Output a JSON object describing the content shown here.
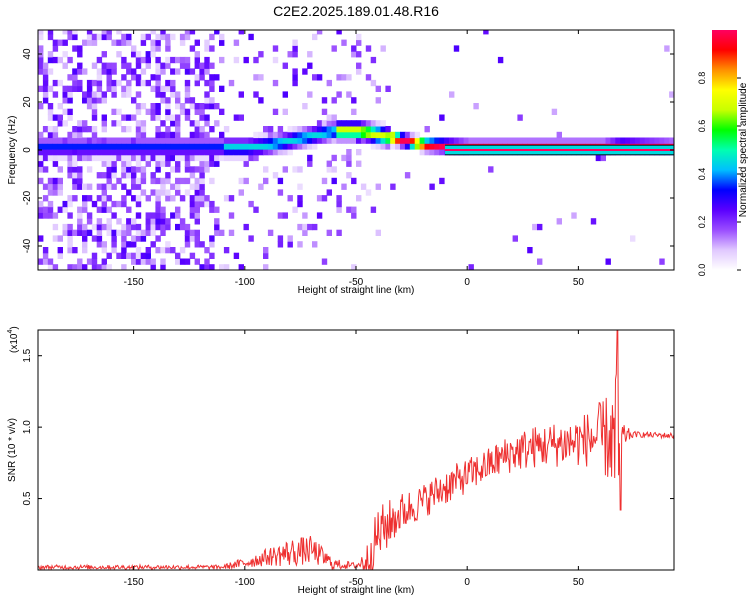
{
  "title": "C2E2.2025.189.01.48.R16",
  "chart_data": [
    {
      "type": "heatmap",
      "xlabel": "Height of straight line (km)",
      "ylabel": "Frequency (Hz)",
      "xlim": [
        -193,
        93
      ],
      "ylim": [
        -50,
        50
      ],
      "xticks": [
        -150,
        -100,
        -50,
        0,
        50
      ],
      "yticks": [
        -40,
        -20,
        0,
        20,
        40
      ],
      "colorbar": {
        "label": "Normalized spectral amplitude",
        "range": [
          0,
          1
        ],
        "ticks": [
          0.0,
          0.2,
          0.4,
          0.6,
          0.8
        ],
        "tick_labels": [
          "0.0",
          "0.2",
          "0.4",
          "0.6",
          "0.8"
        ],
        "colormap": [
          "#ffffff",
          "#e0c8ff",
          "#9a4dff",
          "#5a00ff",
          "#0000ff",
          "#00bfff",
          "#00ffb0",
          "#00ff00",
          "#c8ff00",
          "#ffff00",
          "#ff9000",
          "#ff0000",
          "#ff0060"
        ]
      },
      "ridge": {
        "x": [
          -180,
          -160,
          -140,
          -120,
          -100,
          -90,
          -80,
          -70,
          -60,
          -50,
          -40,
          -30,
          -20,
          -10,
          0,
          20,
          40,
          60,
          68,
          93
        ],
        "y": [
          0,
          0,
          0,
          0,
          0,
          1,
          3,
          5,
          7,
          7,
          5,
          3,
          1,
          0.5,
          0,
          0,
          0,
          0,
          0.5,
          0
        ]
      }
    },
    {
      "type": "line",
      "xlabel": "Height of straight line (km)",
      "ylabel": "SNR (10 * v/v)",
      "y_multiplier_label": "(x10",
      "y_multiplier_exp": "4",
      "y_multiplier_close": ")",
      "xlim": [
        -193,
        93
      ],
      "ylim": [
        0,
        1.68
      ],
      "xticks": [
        -150,
        -100,
        -50,
        0,
        50
      ],
      "yticks": [
        0.5,
        1.0,
        1.5
      ],
      "ytick_labels": [
        "0.5",
        "1.0",
        "1.5"
      ],
      "color": "#ee3030",
      "envelope": {
        "x": [
          -193,
          -110,
          -100,
          -90,
          -80,
          -70,
          -60,
          -50,
          -45,
          -40,
          -30,
          -20,
          -10,
          0,
          10,
          20,
          30,
          40,
          50,
          55,
          60,
          65,
          68,
          70,
          75,
          93
        ],
        "base": [
          0.02,
          0.02,
          0.05,
          0.09,
          0.12,
          0.14,
          0.04,
          0.03,
          0.07,
          0.25,
          0.4,
          0.48,
          0.58,
          0.66,
          0.74,
          0.82,
          0.86,
          0.88,
          0.9,
          0.92,
          0.93,
          0.92,
          0.75,
          0.94,
          0.95,
          0.94
        ],
        "noise": [
          0.015,
          0.015,
          0.04,
          0.06,
          0.1,
          0.1,
          0.04,
          0.02,
          0.12,
          0.2,
          0.14,
          0.12,
          0.13,
          0.12,
          0.12,
          0.14,
          0.15,
          0.16,
          0.18,
          0.2,
          0.25,
          0.35,
          0.75,
          0.08,
          0.02,
          0.02
        ]
      },
      "peak": {
        "x": 67.5,
        "y": 1.68
      },
      "dip": {
        "x": 69,
        "y": 0.42
      }
    }
  ]
}
